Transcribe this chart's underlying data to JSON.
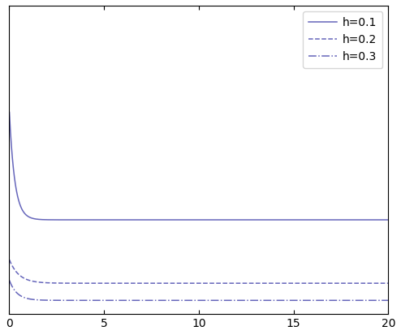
{
  "xlim": [
    0,
    20
  ],
  "xticks": [
    0,
    5,
    10,
    15,
    20
  ],
  "line_color": "#6666bb",
  "legend_labels": [
    "h=0.1",
    "h=0.2",
    "h=0.3"
  ],
  "line_styles": [
    "-",
    "--",
    "-."
  ],
  "figsize": [
    4.94,
    4.13
  ],
  "dpi": 100,
  "curves": [
    {
      "peak": 12.0,
      "asymptote": 5.5,
      "decay": 3.5
    },
    {
      "peak": 3.2,
      "asymptote": 1.8,
      "decay": 2.0
    },
    {
      "peak": 2.0,
      "asymptote": 0.8,
      "decay": 2.5
    }
  ],
  "ylim": [
    0,
    18
  ]
}
